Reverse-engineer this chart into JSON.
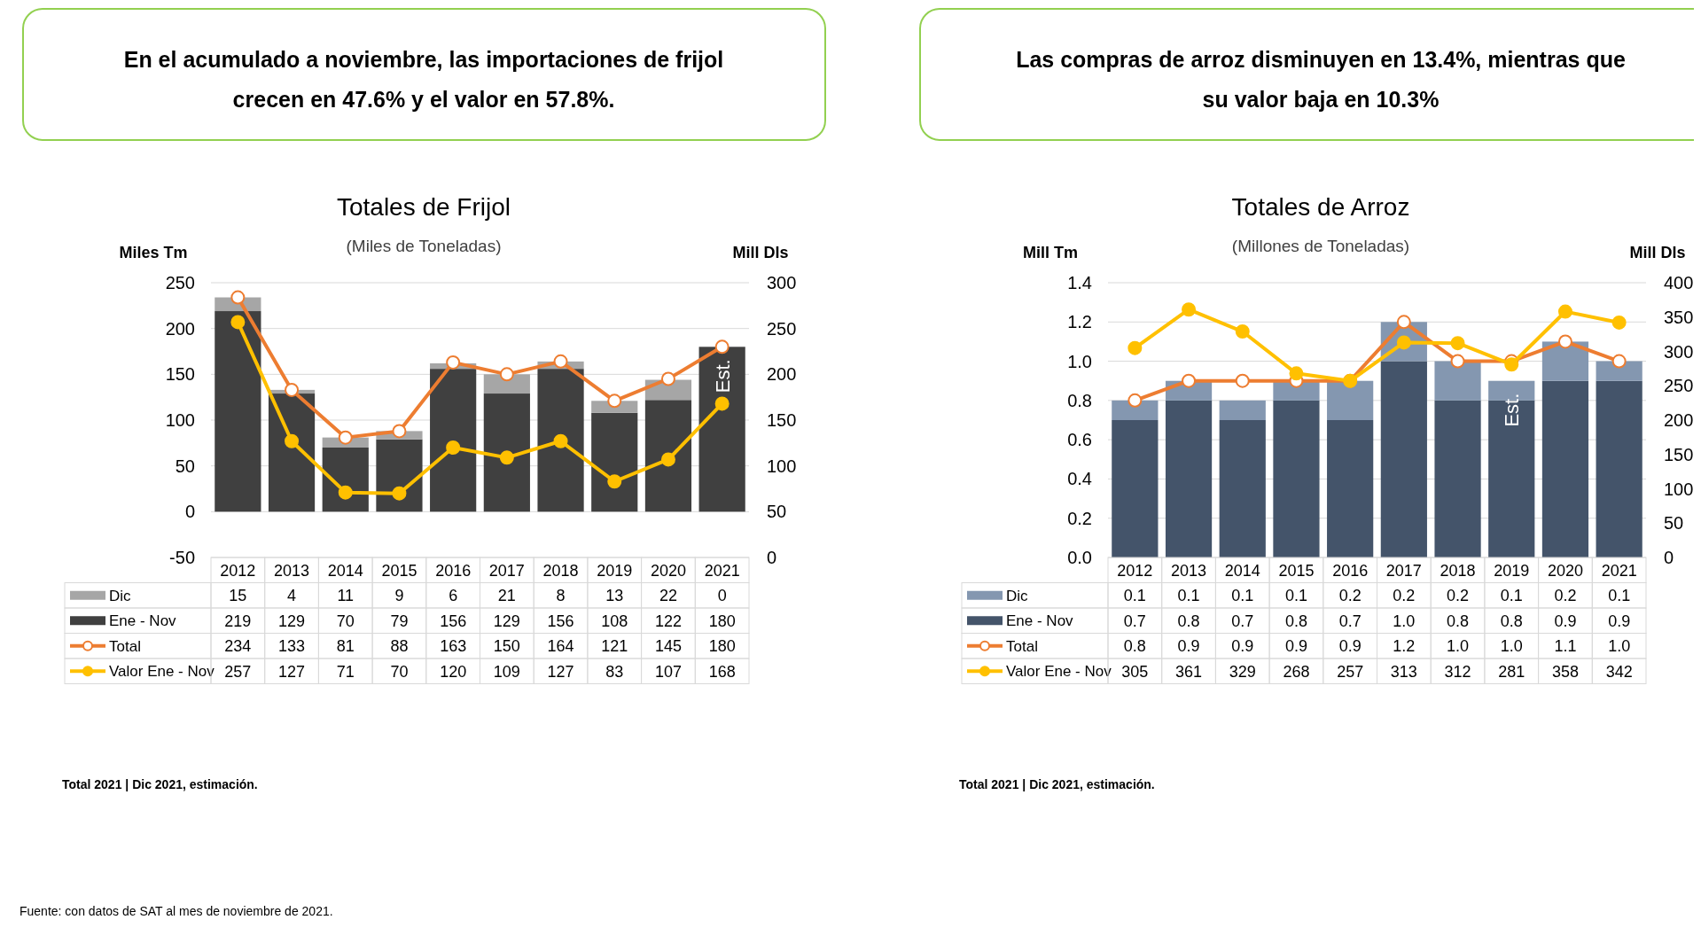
{
  "chart_data": [
    {
      "type": "bar",
      "title": "Totales de Frijol",
      "subtitle": "(Miles de Toneladas)",
      "ylabel": "Miles Tm",
      "y2label": "Mill Dls",
      "stacked": true,
      "categories": [
        "2012",
        "2013",
        "2014",
        "2015",
        "2016",
        "2017",
        "2018",
        "2019",
        "2020",
        "2021"
      ],
      "series": [
        {
          "name": "Ene - Nov",
          "color": "#404040",
          "values": [
            219,
            129,
            70,
            79,
            156,
            129,
            156,
            108,
            122,
            180
          ]
        },
        {
          "name": "Dic",
          "color": "#a6a6a6",
          "values": [
            15,
            4,
            11,
            9,
            6,
            21,
            8,
            13,
            22,
            0
          ]
        },
        {
          "name": "Total",
          "type": "line",
          "color": "#ed7d31",
          "values": [
            234,
            133,
            81,
            88,
            163,
            150,
            164,
            121,
            145,
            180
          ]
        },
        {
          "name": "Valor Ene - Nov",
          "type": "line",
          "axis": "y2",
          "color": "#ffc000",
          "values": [
            257,
            127,
            71,
            70,
            120,
            109,
            127,
            83,
            107,
            168
          ]
        }
      ],
      "ylim": [
        -50,
        250
      ],
      "yticks": [
        -50,
        0,
        50,
        100,
        150,
        200,
        250
      ],
      "y2lim": [
        0,
        300
      ],
      "y2ticks": [
        0,
        50,
        100,
        150,
        200,
        250,
        300
      ],
      "grid": "y",
      "legend": "bottom",
      "marker": "circle",
      "line_style": "solid",
      "data_labels": true,
      "annotations": [
        "En el acumulado a noviembre, las importaciones de frijol crecen en 47.6% y el valor en 57.8%.",
        "Total 2021 | Dic 2021, estimación.",
        "Fuente: con datos de SAT al mes de noviembre de 2021.",
        "Est."
      ]
    },
    {
      "type": "bar",
      "title": "Totales de Arroz",
      "subtitle": "(Millones de Toneladas)",
      "ylabel": "Mill Tm",
      "y2label": "Mill Dls",
      "stacked": true,
      "categories": [
        "2012",
        "2013",
        "2014",
        "2015",
        "2016",
        "2017",
        "2018",
        "2019",
        "2020",
        "2021"
      ],
      "series": [
        {
          "name": "Ene - Nov",
          "color": "#44546a",
          "values": [
            0.7,
            0.8,
            0.7,
            0.8,
            0.7,
            1.0,
            0.8,
            0.8,
            0.9,
            0.9
          ],
          "value_labels": [
            "0.7",
            "0.8",
            "0.7",
            "0.8",
            "0.7",
            "1.0",
            "0.8",
            "0.8",
            "0.9",
            "0.9"
          ]
        },
        {
          "name": "Dic",
          "color": "#8497b0",
          "values": [
            0.1,
            0.1,
            0.1,
            0.1,
            0.2,
            0.2,
            0.2,
            0.1,
            0.2,
            0.1
          ],
          "value_labels": [
            "0.1",
            "0.1",
            "0.1",
            "0.1",
            "0.2",
            "0.2",
            "0.2",
            "0.1",
            "0.2",
            "0.1"
          ]
        },
        {
          "name": "Total",
          "type": "line",
          "color": "#ed7d31",
          "values": [
            0.8,
            0.9,
            0.9,
            0.9,
            0.9,
            1.2,
            1.0,
            1.0,
            1.1,
            1.0
          ],
          "value_labels": [
            "0.8",
            "0.9",
            "0.9",
            "0.9",
            "0.9",
            "1.2",
            "1.0",
            "1.0",
            "1.1",
            "1.0"
          ]
        },
        {
          "name": "Valor Ene - Nov",
          "type": "line",
          "axis": "y2",
          "color": "#ffc000",
          "values": [
            305,
            361,
            329,
            268,
            257,
            313,
            312,
            281,
            358,
            342
          ],
          "value_labels": [
            "305",
            "361",
            "329",
            "268",
            "257",
            "313",
            "312",
            "281",
            "358",
            "342"
          ]
        }
      ],
      "ylim": [
        0,
        1.4
      ],
      "yticks": [
        {
          "value": 0,
          "label": "0.0"
        },
        {
          "value": 0.2,
          "label": "0.2"
        },
        {
          "value": 0.4,
          "label": "0.4"
        },
        {
          "value": 0.6,
          "label": "0.6"
        },
        {
          "value": 0.8,
          "label": "0.8"
        },
        {
          "value": 1,
          "label": "1.0"
        },
        {
          "value": 1.2,
          "label": "1.2"
        },
        {
          "value": 1.4,
          "label": "1.4"
        }
      ],
      "y2lim": [
        0,
        400
      ],
      "y2ticks": [
        0,
        50,
        100,
        150,
        200,
        250,
        300,
        350,
        400
      ],
      "grid": "y",
      "legend": "bottom",
      "marker": "circle",
      "line_style": "solid",
      "annotations": [
        "Las compras de arroz disminuyen en 13.4%, mientras que su valor baja en 10.3%",
        "Total 2021 | Dic 2021, estimación.",
        "Est."
      ]
    }
  ]
}
